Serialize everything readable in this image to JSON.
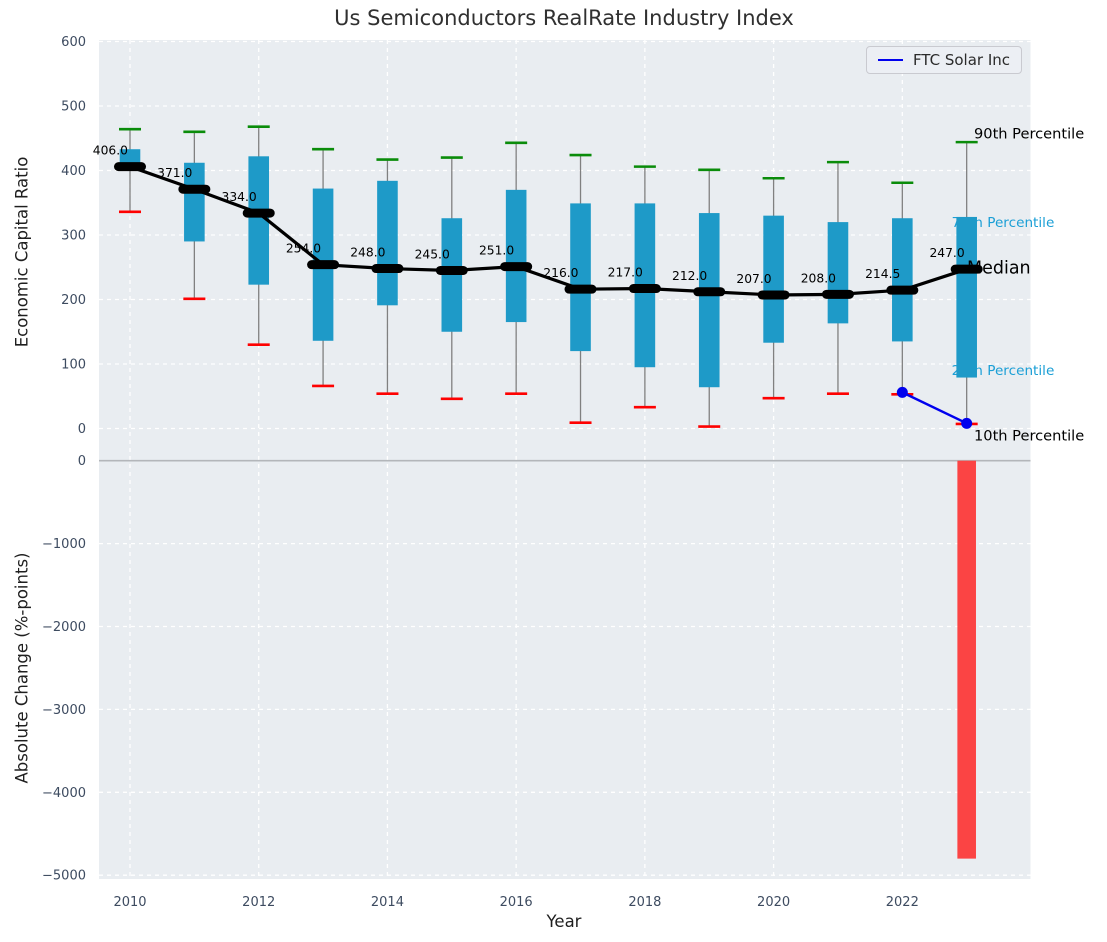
{
  "title": "Us Semiconductors RealRate Industry Index",
  "axes": {
    "top": {
      "ylabel": "Economic Capital Ratio",
      "yticks": {
        "values": [
          600,
          500,
          400,
          300,
          200,
          100,
          0
        ],
        "labels": [
          "600",
          "500",
          "400",
          "300",
          "200",
          "100",
          "0"
        ]
      }
    },
    "bottom": {
      "ylabel": "Absolute Change (%-points)",
      "yticks": {
        "values": [
          0,
          -1000,
          -2000,
          -3000,
          -4000,
          -5000
        ],
        "labels": [
          "0",
          "−1000",
          "−2000",
          "−3000",
          "−4000",
          "−5000"
        ]
      }
    },
    "xlabel": "Year",
    "xticks": {
      "values": [
        2010,
        2012,
        2014,
        2016,
        2018,
        2020,
        2022
      ],
      "labels": [
        "2010",
        "2012",
        "2014",
        "2016",
        "2018",
        "2020",
        "2022"
      ]
    }
  },
  "legend": {
    "label": "FTC Solar Inc",
    "line_color": "#0000ee"
  },
  "annotations": [
    {
      "id": "p90",
      "text": "90th Percentile",
      "color": "#000000"
    },
    {
      "id": "p75",
      "text": "75th Percentile",
      "color": "#1b9fd6"
    },
    {
      "id": "median",
      "text": "Median",
      "color": "#000000"
    },
    {
      "id": "p25",
      "text": "25th Percentile",
      "color": "#1b9fd6"
    },
    {
      "id": "p10",
      "text": "10th Percentile",
      "color": "#000000"
    }
  ],
  "colors": {
    "plot_bg": "#e9edf1",
    "grid": "#ffffff",
    "box_fill": "#1e9ac8",
    "whisker": "#808080",
    "cap_high": "#0a8c0a",
    "cap_low": "#fe0101",
    "median_line": "#000000",
    "overlay_line": "#0000ee",
    "neg_bar": "#fb4444",
    "tick_label": "#3d4b60",
    "cyan_label": "#1b9fd6",
    "separator": "#b3b6ba"
  },
  "chart_data": [
    {
      "type": "box",
      "title": "Us Semiconductors RealRate Industry Index",
      "xlabel": "Year",
      "ylabel": "Economic Capital Ratio",
      "ylim": [
        -45,
        600
      ],
      "grid": true,
      "x": [
        2010,
        2011,
        2012,
        2013,
        2014,
        2015,
        2016,
        2017,
        2018,
        2019,
        2020,
        2021,
        2022,
        2023
      ],
      "series": {
        "p90": [
          464,
          460,
          468,
          433,
          417,
          420,
          443,
          424,
          406,
          401,
          388,
          413,
          381,
          444
        ],
        "p75": [
          433,
          412,
          422,
          372,
          384,
          326,
          370,
          349,
          349,
          334,
          330,
          320,
          326,
          328
        ],
        "median": [
          406.0,
          371.0,
          334.0,
          254.0,
          248.0,
          245.0,
          251.0,
          216.0,
          217.0,
          212.0,
          207.0,
          208.0,
          214.5,
          247.0
        ],
        "p25": [
          400,
          290,
          223,
          136,
          191,
          150,
          165,
          120,
          95,
          64,
          133,
          163,
          135,
          79
        ],
        "p10": [
          336,
          201,
          130,
          66,
          54,
          46,
          54,
          9,
          33,
          3,
          47,
          54,
          53,
          7
        ]
      },
      "median_labels": [
        "406.0",
        "371.0",
        "334.0",
        "254.0",
        "248.0",
        "245.0",
        "251.0",
        "216.0",
        "217.0",
        "212.0",
        "207.0",
        "208.0",
        "214.5",
        "247.0"
      ],
      "overlay_line": {
        "name": "FTC Solar Inc",
        "x": [
          2022,
          2023
        ],
        "y": [
          56,
          8
        ],
        "color": "#0000ee"
      },
      "legend_position": "upper right"
    },
    {
      "type": "bar",
      "ylabel": "Absolute Change (%-points)",
      "ylim": [
        -5050,
        40
      ],
      "grid": true,
      "x": [
        2023
      ],
      "values": [
        -4800
      ],
      "color": "#fb4444"
    }
  ]
}
